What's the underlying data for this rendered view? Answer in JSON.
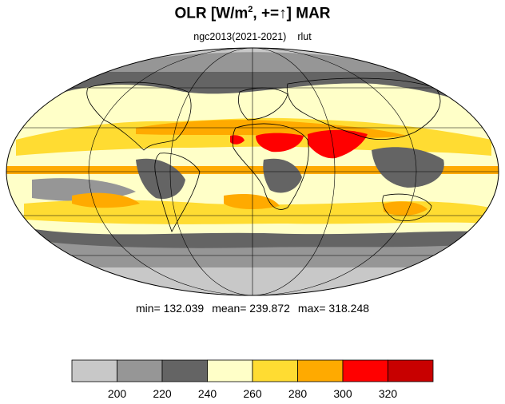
{
  "title": {
    "prefix": "OLR [W/m",
    "sup": "2",
    "middle": ", +=",
    "arrow": "↑",
    "suffix": "] MAR"
  },
  "subtitle": {
    "dataset": "ngc2013(2021-2021)",
    "variable": "rlut"
  },
  "stats": {
    "min": "min= 132.039",
    "mean": "mean= 239.872",
    "max": "max= 318.248"
  },
  "colorbar": {
    "colors": [
      "#c8c8c8",
      "#969696",
      "#646464",
      "#ffffc8",
      "#ffdc32",
      "#ffaa00",
      "#ff0000",
      "#c80000"
    ],
    "tick_labels": [
      "200",
      "220",
      "240",
      "260",
      "280",
      "300",
      "320"
    ],
    "tick_values": [
      200,
      220,
      240,
      260,
      280,
      300,
      320
    ]
  },
  "map": {
    "projection": "mollweide",
    "ocean_fill": "#ffffc8",
    "land_outline": "#000000"
  }
}
